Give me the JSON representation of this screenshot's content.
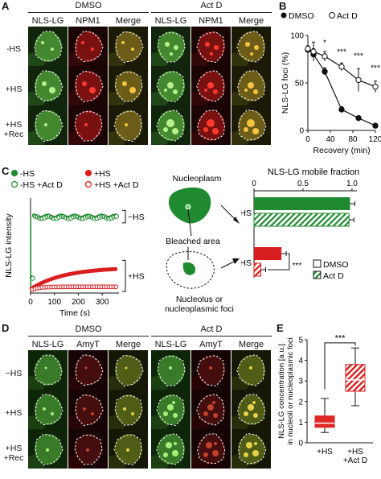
{
  "panelA": {
    "letter": "A",
    "groups": [
      "DMSO",
      "Act D"
    ],
    "columns": [
      "NLS-LG",
      "NPM1",
      "Merge",
      "NLS-LG",
      "NPM1",
      "Merge"
    ],
    "rows": [
      "-HS",
      "+HS",
      "+HS\n+Rec"
    ]
  },
  "panelB": {
    "letter": "B",
    "chart_data": {
      "type": "line",
      "xlabel": "Recovery (min)",
      "ylabel": "NLS-LG foci (%)",
      "xlim": [
        0,
        120
      ],
      "ylim": [
        0,
        100
      ],
      "xticks": [
        "0",
        "40",
        "80",
        "120"
      ],
      "yticks": [
        "0",
        "50",
        "100"
      ],
      "x": [
        0,
        10,
        30,
        60,
        90,
        120
      ],
      "series": [
        {
          "name": "DMSO",
          "values": [
            85,
            80,
            62,
            22,
            13,
            5
          ],
          "err": [
            3,
            6,
            4,
            3,
            2,
            2
          ]
        },
        {
          "name": "Act D",
          "values": [
            86,
            83,
            78,
            67,
            53,
            46
          ],
          "err": [
            3,
            10,
            5,
            4,
            12,
            6
          ]
        }
      ],
      "annotations": [
        "*",
        "***",
        "***",
        "***"
      ],
      "legend": "top-right"
    }
  },
  "panelC": {
    "letter": "C",
    "chart_data": [
      {
        "type": "scatter",
        "xlabel": "Time (s)",
        "ylabel": "NLS-LG intensity",
        "xticks": [
          "0",
          "100",
          "200",
          "300"
        ],
        "xlim": [
          0,
          370
        ],
        "legend": [
          "-HS",
          "-HS +Act D",
          "+HS",
          "+HS +Act D"
        ],
        "bracket_labels": [
          "−HS",
          "+HS"
        ]
      },
      {
        "type": "bar",
        "title": "NLS-LG mobile fraction",
        "xticks": [
          "0",
          "0.5",
          "1.0"
        ],
        "xlim": [
          0,
          1.05
        ],
        "categories": [
          "−HS",
          "+HS"
        ],
        "series": [
          {
            "name": "DMSO",
            "values": [
              0.98,
              0.28
            ]
          },
          {
            "name": "Act D",
            "values": [
              0.97,
              0.07
            ]
          }
        ],
        "annotations": [
          "***"
        ],
        "legend": [
          "DMSO",
          "Act D"
        ]
      }
    ],
    "diagram": {
      "nucleoplasm": "Nucleoplasm",
      "bleached": "Bleached area",
      "foci": "Nucleolus or\nnucleoplasmic foci"
    }
  },
  "panelD": {
    "letter": "D",
    "groups": [
      "DMSO",
      "Act D"
    ],
    "columns": [
      "NLS-LG",
      "AmyT",
      "Merge",
      "NLS-LG",
      "AmyT",
      "Merge"
    ],
    "rows": [
      "−HS",
      "+HS",
      "+HS\n+Rec"
    ]
  },
  "panelE": {
    "letter": "E",
    "chart_data": {
      "type": "box",
      "ylabel": "NLS-LG concentration [a.u.]\nin nucleoli or nucleoplasmic foci",
      "ylim": [
        0,
        5
      ],
      "yticks": [
        "0",
        "1",
        "2",
        "3",
        "4",
        "5"
      ],
      "categories": [
        "+HS",
        "+HS\n+Act D"
      ],
      "boxes": [
        {
          "min": 0.5,
          "q1": 0.75,
          "median": 0.95,
          "q3": 1.3,
          "max": 2.15
        },
        {
          "min": 1.8,
          "q1": 2.5,
          "median": 3.05,
          "q3": 3.8,
          "max": 4.6
        }
      ],
      "annotations": [
        "***"
      ]
    }
  }
}
